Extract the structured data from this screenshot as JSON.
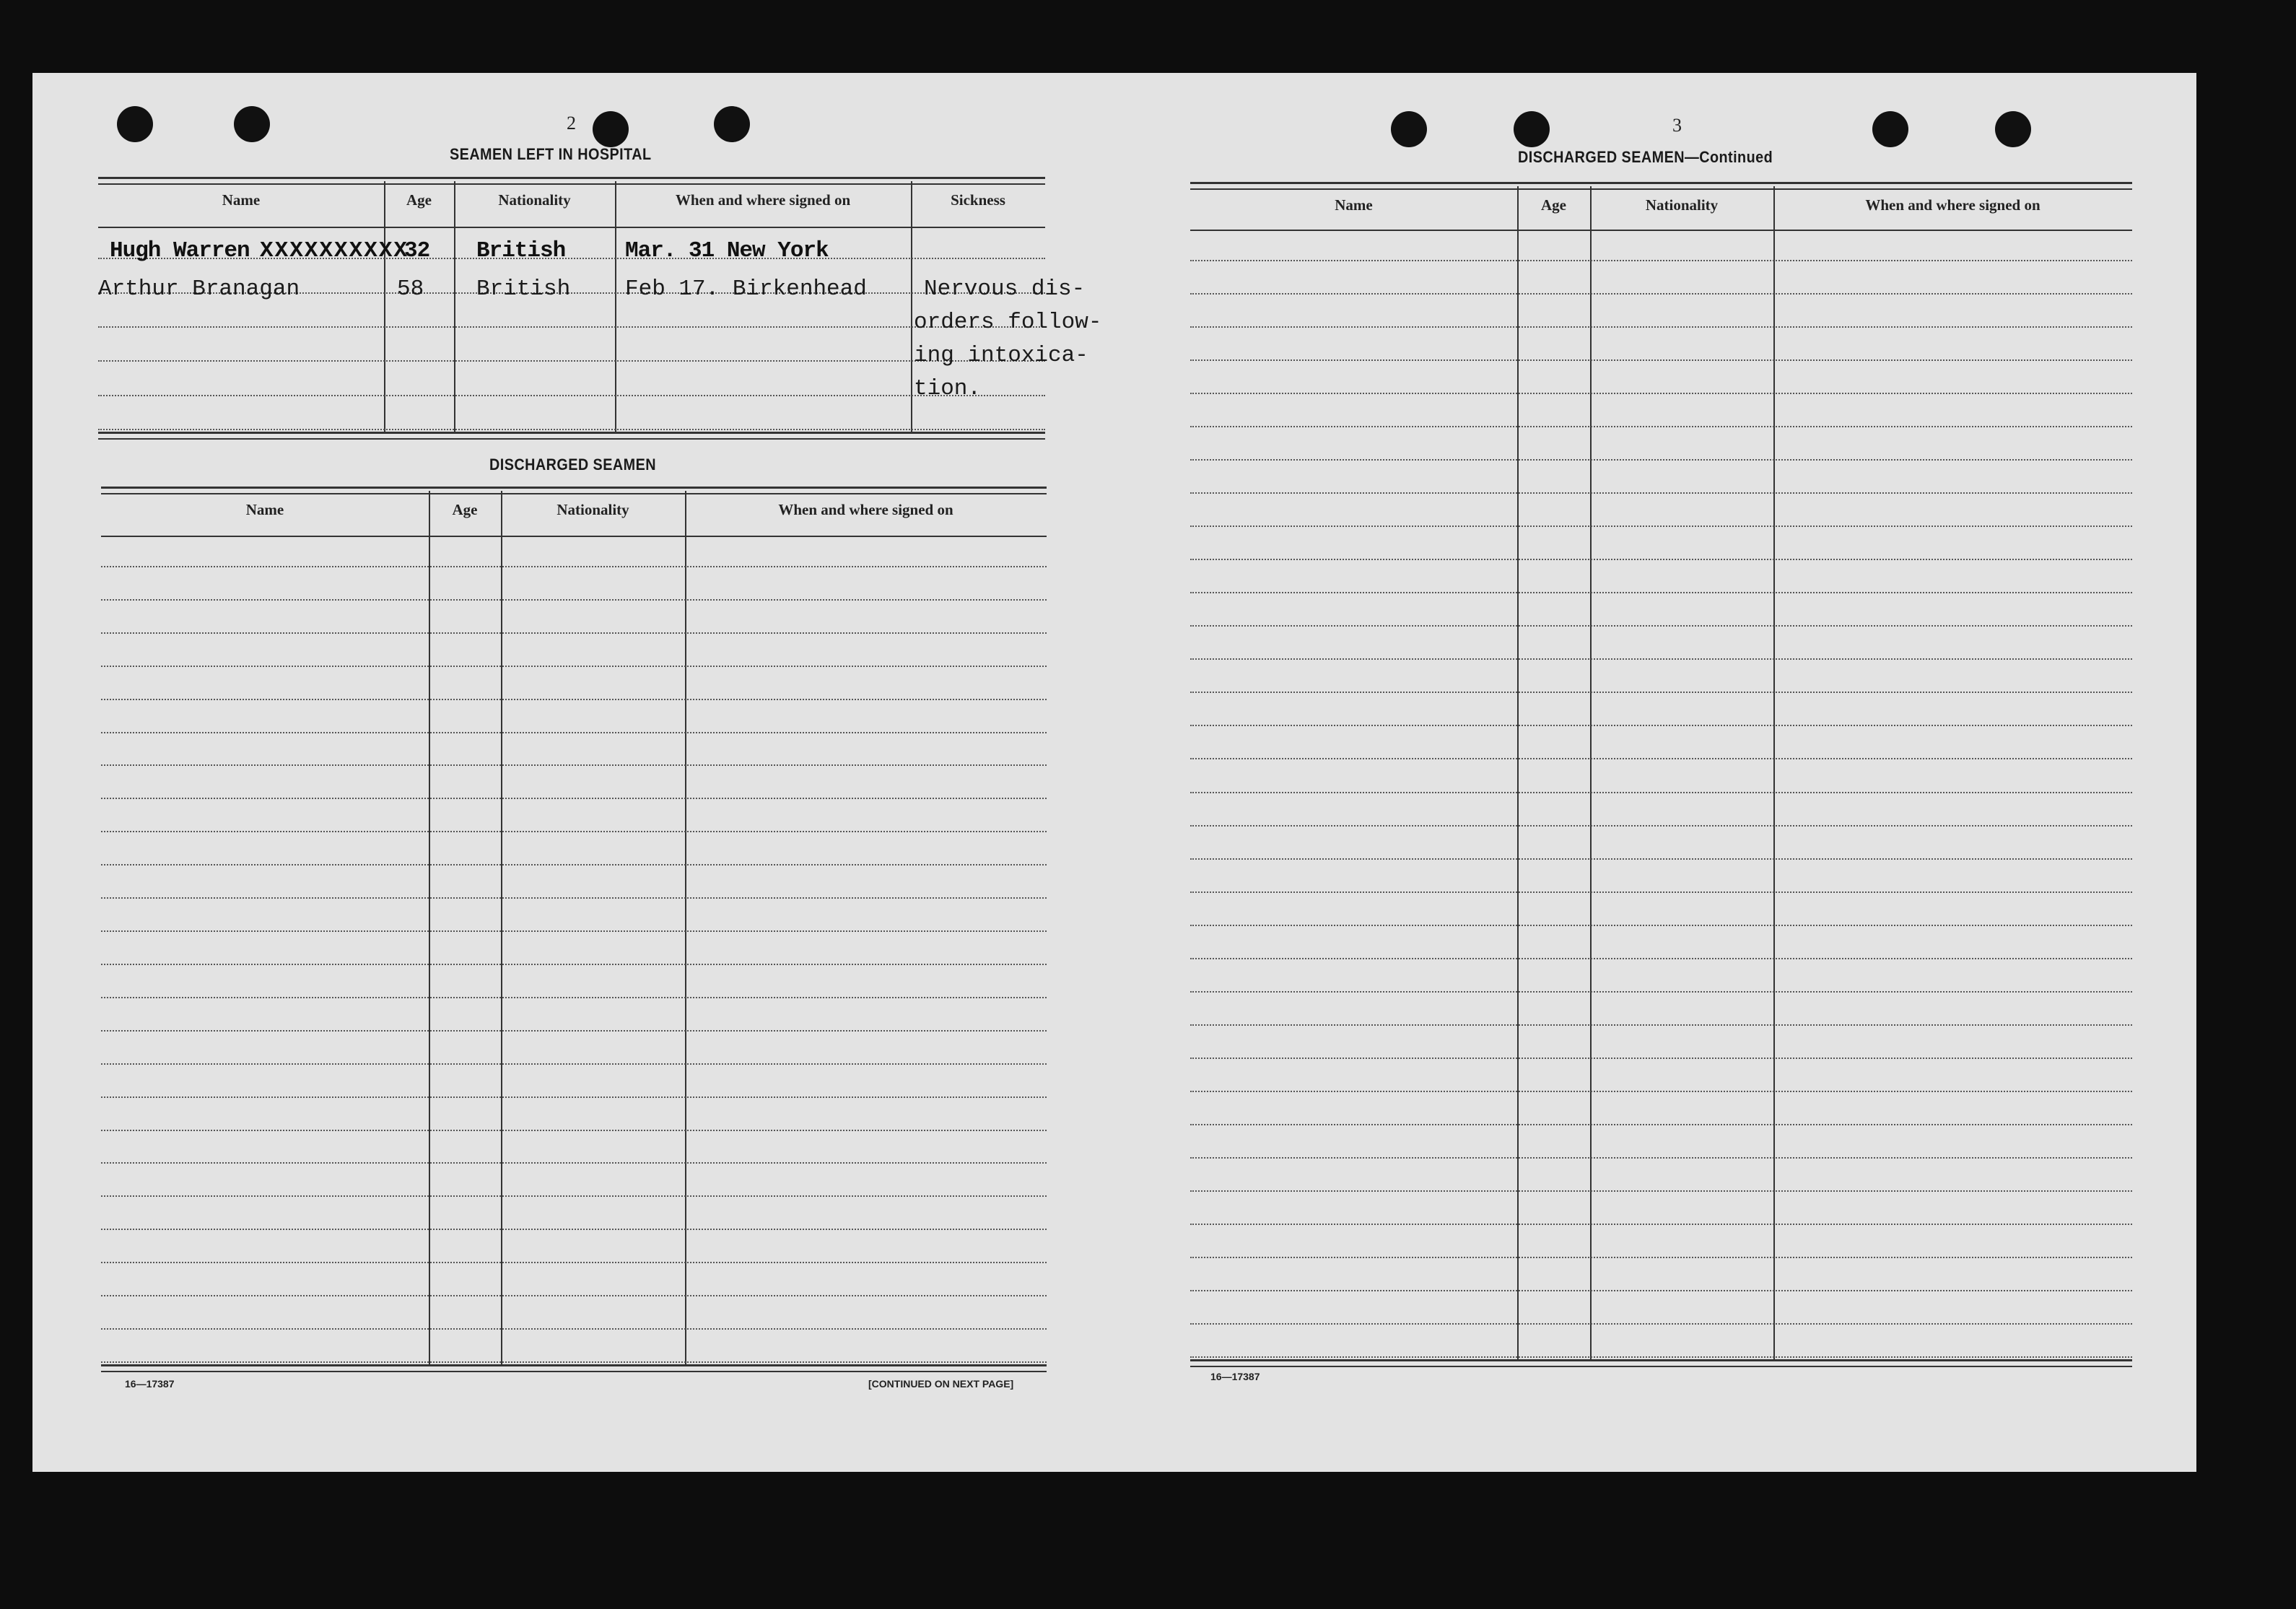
{
  "left_page": {
    "page_number": "2",
    "hospital": {
      "title": "SEAMEN LEFT IN HOSPITAL",
      "columns": [
        "Name",
        "Age",
        "Nationality",
        "When and where signed on",
        "Sickness"
      ],
      "struck_row": {
        "name": "Hugh Warren",
        "age": "32",
        "nationality": "British",
        "signed_on": "Mar. 31 New York"
      },
      "rows": [
        {
          "name": "Arthur Branagan",
          "age": "58",
          "nationality": "British",
          "signed_on": "Feb 17. Birkenhead",
          "sickness": [
            "Nervous dis-",
            "orders follow-",
            "ing intoxica-",
            "tion."
          ]
        }
      ]
    },
    "discharged": {
      "title": "DISCHARGED SEAMEN",
      "columns": [
        "Name",
        "Age",
        "Nationality",
        "When and where signed on"
      ],
      "rows": []
    },
    "form_number": "16—17387",
    "continued_note": "[CONTINUED ON NEXT PAGE]"
  },
  "right_page": {
    "page_number": "3",
    "discharged_continued": {
      "title": "DISCHARGED SEAMEN—Continued",
      "columns": [
        "Name",
        "Age",
        "Nationality",
        "When and where signed on"
      ],
      "rows": []
    },
    "form_number": "16—17387"
  },
  "colors": {
    "paper": "#e3e3e3",
    "background": "#0d0d0d",
    "ink": "#1b1b1b"
  }
}
